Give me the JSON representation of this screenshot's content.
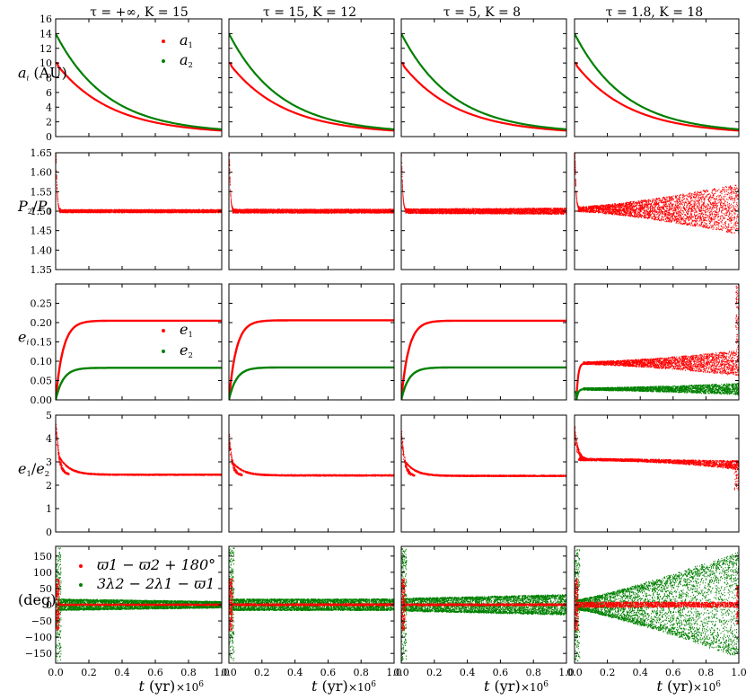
{
  "chart_data": {
    "type": "scatter",
    "columns": [
      {
        "title": "τ = +∞, K = 15",
        "tau": "+∞",
        "K": 15
      },
      {
        "title": "τ = 15, K = 12",
        "tau": "15",
        "K": 12
      },
      {
        "title": "τ = 5, K = 8",
        "tau": "5",
        "K": 8
      },
      {
        "title": "τ = 1.8, K = 18",
        "tau": "1.8",
        "K": 18
      }
    ],
    "x": {
      "label": "t (yr)",
      "range": [
        0.0,
        1.0
      ],
      "ticks": [
        "0.0",
        "0.2",
        "0.4",
        "0.6",
        "0.8",
        "1.0"
      ],
      "multiplier": "×10",
      "exponent": "6"
    },
    "colors": {
      "red": "#ff0000",
      "green": "#008000"
    },
    "rows": [
      {
        "key": "a",
        "ylabel": "a_i (AU)",
        "range": [
          0,
          16
        ],
        "ticks": [
          "0",
          "2",
          "4",
          "6",
          "8",
          "10",
          "12",
          "14",
          "16"
        ],
        "legend": [
          "a1",
          "a2"
        ],
        "series": [
          {
            "name": "a1",
            "color": "red",
            "start": 10.0,
            "end": 0.35,
            "scale_time": 0.33
          },
          {
            "name": "a2",
            "color": "green",
            "start": 14.0,
            "end": 0.45,
            "scale_time": 0.31
          }
        ]
      },
      {
        "key": "P",
        "ylabel": "P2/P1",
        "range": [
          1.35,
          1.65
        ],
        "ticks": [
          "1.35",
          "1.40",
          "1.45",
          "1.50",
          "1.55",
          "1.60",
          "1.65"
        ],
        "columns": [
          {
            "level": 1.5,
            "width_start": 0.004,
            "width_end": 0.004
          },
          {
            "level": 1.5,
            "width_start": 0.005,
            "width_end": 0.005
          },
          {
            "level": 1.5,
            "width_start": 0.006,
            "width_end": 0.008
          },
          {
            "level": 1.505,
            "width_start": 0.006,
            "width_end": 0.065
          }
        ]
      },
      {
        "key": "e",
        "ylabel": "e_i",
        "range": [
          0.0,
          0.3
        ],
        "ticks": [
          "0.00",
          "0.05",
          "0.10",
          "0.15",
          "0.20",
          "0.25"
        ],
        "legend": [
          "e1",
          "e2"
        ],
        "columns": [
          {
            "e1": 0.205,
            "e2": 0.083
          },
          {
            "e1": 0.206,
            "e2": 0.084
          },
          {
            "e1": 0.205,
            "e2": 0.084
          },
          {
            "e1": 0.095,
            "e2": 0.028,
            "e1_spread_end": 0.03,
            "e2_spread_end": 0.012
          }
        ]
      },
      {
        "key": "ratio",
        "ylabel": "e1/e2",
        "range": [
          0,
          5
        ],
        "ticks": [
          "0",
          "1",
          "2",
          "3",
          "4",
          "5"
        ],
        "columns": [
          {
            "start": 4.6,
            "level": 2.45
          },
          {
            "start": 4.0,
            "level": 2.42
          },
          {
            "start": 4.2,
            "level": 2.4
          },
          {
            "start": 4.3,
            "level": 3.1,
            "end": 2.85
          }
        ]
      },
      {
        "key": "angle",
        "ylabel": "(deg)",
        "range": [
          -180,
          180
        ],
        "ticks": [
          "−150",
          "−100",
          "−50",
          "0",
          "50",
          "100",
          "150"
        ],
        "legend": [
          "ϖ1 − ϖ2 + 180°",
          "3λ2 − 2λ1 − ϖ1"
        ],
        "columns": [
          {
            "res_amp_start": 18,
            "res_amp_end": 10,
            "apse_amp": 2
          },
          {
            "res_amp_start": 18,
            "res_amp_end": 18,
            "apse_amp": 3
          },
          {
            "res_amp_start": 20,
            "res_amp_end": 32,
            "apse_amp": 3
          },
          {
            "res_amp_start": 15,
            "res_amp_end": 165,
            "apse_amp": 8
          }
        ]
      }
    ]
  }
}
